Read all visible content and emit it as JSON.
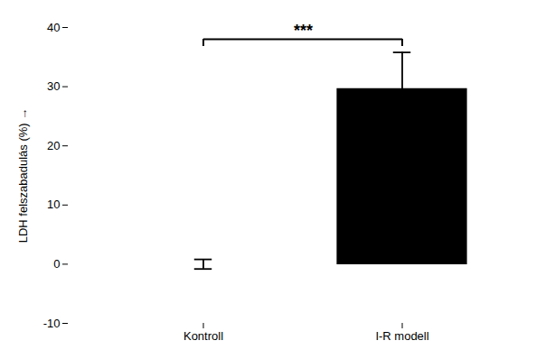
{
  "chart_data": {
    "type": "bar",
    "categories": [
      "Kontroll",
      "I-R modell"
    ],
    "values": [
      0.0,
      29.58
    ],
    "errors": [
      0.81,
      6.21
    ],
    "colors": [
      "#000000",
      "#000000"
    ],
    "ylabel": "LDH felszabadulás (%)",
    "ylim": [
      -10,
      40
    ],
    "yticks": [
      -10,
      0,
      10,
      20,
      30,
      40
    ],
    "grid": false,
    "annotations": [
      {
        "text": "***",
        "from": "Kontroll",
        "to": "I-R modell",
        "y": 38
      }
    ]
  }
}
